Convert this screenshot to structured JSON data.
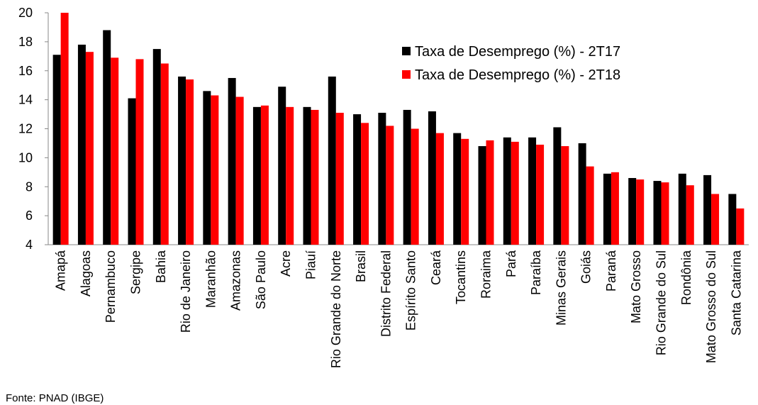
{
  "chart_data": {
    "type": "bar",
    "categories": [
      "Amapá",
      "Alagoas",
      "Pernambuco",
      "Sergipe",
      "Bahia",
      "Rio de Janeiro",
      "Maranhão",
      "Amazonas",
      "São Paulo",
      "Acre",
      "Piauí",
      "Rio Grande do Norte",
      "Brasil",
      "Distrito Federal",
      "Espírito Santo",
      "Ceará",
      "Tocantins",
      "Roraima",
      "Pará",
      "Paraíba",
      "Minas Gerais",
      "Goiás",
      "Paraná",
      "Mato Grosso",
      "Rio Grande do Sul",
      "Rondônia",
      "Mato Grosso do Sul",
      "Santa Catarina"
    ],
    "series": [
      {
        "name": "Taxa de Desemprego (%) - 2T17",
        "color": "#000000",
        "values": [
          17.1,
          17.8,
          18.8,
          14.1,
          17.5,
          15.6,
          14.6,
          15.5,
          13.5,
          14.9,
          13.5,
          15.6,
          13.0,
          13.1,
          13.3,
          13.2,
          11.7,
          10.8,
          11.4,
          11.4,
          12.1,
          11.0,
          8.9,
          8.6,
          8.4,
          8.9,
          8.8,
          7.5
        ]
      },
      {
        "name": "Taxa de Desemprego (%) - 2T18",
        "color": "#ff0000",
        "values": [
          20.0,
          17.3,
          16.9,
          16.8,
          16.5,
          15.4,
          14.3,
          14.2,
          13.6,
          13.5,
          13.3,
          13.1,
          12.4,
          12.2,
          12.0,
          11.7,
          11.3,
          11.2,
          11.1,
          10.9,
          10.8,
          9.4,
          9.0,
          8.5,
          8.3,
          8.1,
          7.5,
          6.5
        ]
      }
    ],
    "ylim": [
      4,
      20
    ],
    "yticks": [
      4,
      6,
      8,
      10,
      12,
      14,
      16,
      18,
      20
    ],
    "legend": "upper right",
    "source": "Fonte: PNAD (IBGE)"
  }
}
